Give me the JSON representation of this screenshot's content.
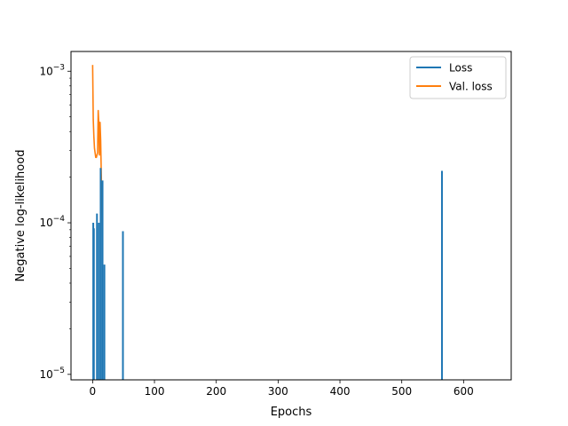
{
  "chart_data": {
    "type": "line",
    "xlabel": "Epochs",
    "ylabel": "Negative log-likelihood",
    "xlim": [
      -35,
      677
    ],
    "ylim": [
      9.2e-06,
      0.00135
    ],
    "yscale": "log",
    "grid": false,
    "legend_position": "top-right",
    "x_ticks": [
      0,
      100,
      200,
      300,
      400,
      500,
      600
    ],
    "x_tick_labels": [
      "0",
      "100",
      "200",
      "300",
      "400",
      "500",
      "600"
    ],
    "y_ticks": [
      1e-05,
      0.0001,
      0.001
    ],
    "y_tick_base": "10",
    "y_tick_exponents": [
      "−5",
      "−4",
      "−3"
    ],
    "series": [
      {
        "name": "Loss",
        "color": "#1f77b4",
        "spikes": [
          {
            "x": 1,
            "peak": 0.0001
          },
          {
            "x": 2,
            "peak": 9.2e-05
          },
          {
            "x": 7,
            "peak": 0.000115
          },
          {
            "x": 10,
            "peak": 0.0001
          },
          {
            "x": 13,
            "peak": 0.00023
          },
          {
            "x": 16,
            "peak": 0.00019
          },
          {
            "x": 19,
            "peak": 5.3e-05
          },
          {
            "x": 49,
            "peak": 8.8e-05
          },
          {
            "x": 565,
            "peak": 0.00022
          }
        ]
      },
      {
        "name": "Val. loss",
        "color": "#ff7f0e",
        "x": [
          0,
          1,
          2,
          3,
          5,
          6,
          7,
          8,
          9,
          10,
          11,
          12,
          13,
          14,
          15,
          16
        ],
        "y": [
          0.0011,
          0.00048,
          0.00037,
          0.00031,
          0.00027,
          0.00027,
          0.00028,
          0.00029,
          0.00055,
          0.00045,
          0.00028,
          0.00046,
          0.00035,
          0.00021,
          0.00013,
          8e-05
        ]
      }
    ]
  }
}
